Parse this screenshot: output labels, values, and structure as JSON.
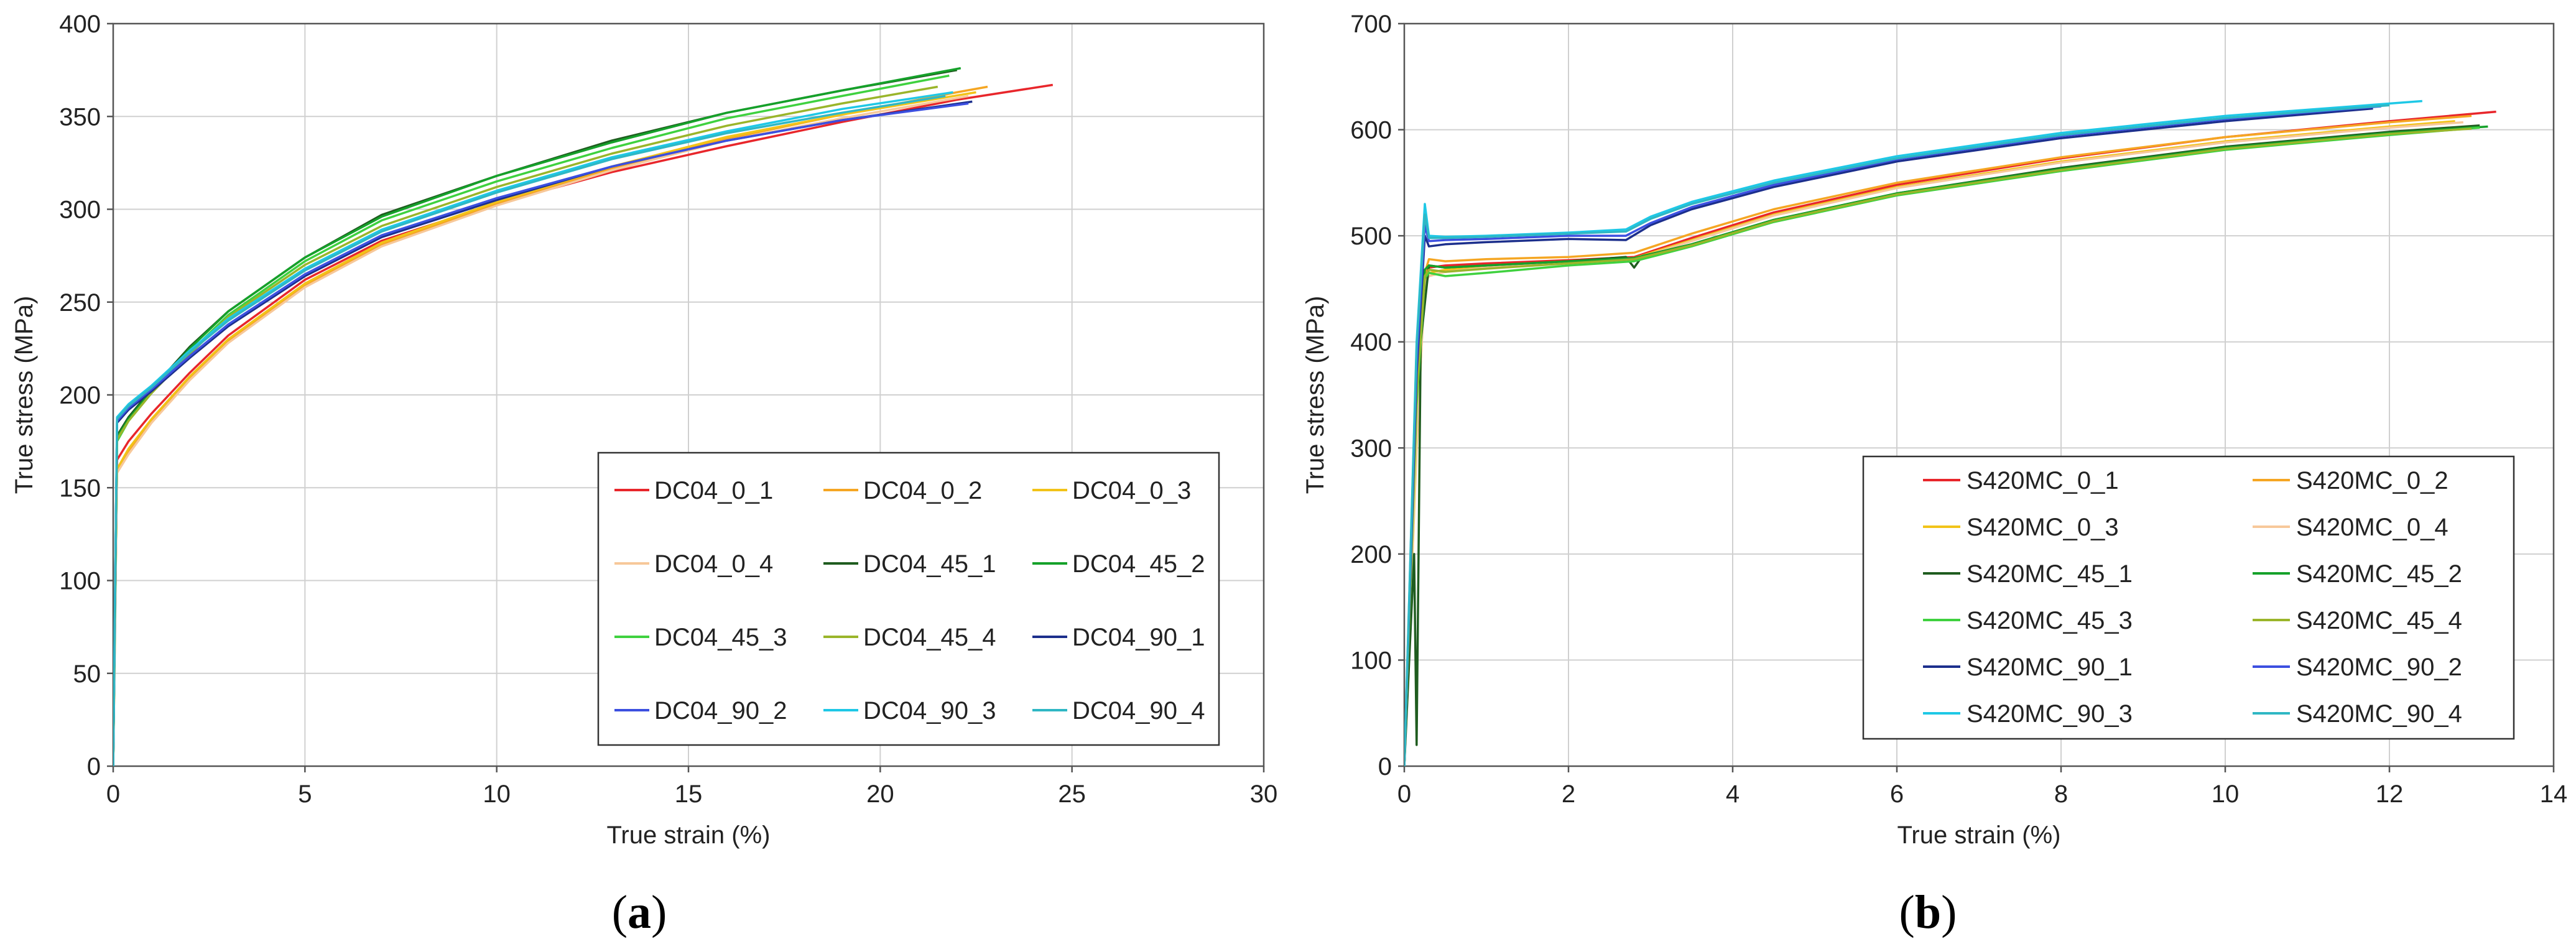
{
  "chart_data": [
    {
      "type": "line",
      "panel": "a",
      "caption": {
        "open": "(",
        "letter": "a",
        "close": ")"
      },
      "xlabel": "True strain (%)",
      "ylabel": "True stress (MPa)",
      "xlim": [
        0,
        30
      ],
      "ylim": [
        0,
        400
      ],
      "xticks": [
        0,
        5,
        10,
        15,
        20,
        25,
        30
      ],
      "yticks": [
        0,
        50,
        100,
        150,
        200,
        250,
        300,
        350,
        400
      ],
      "grid": true,
      "legend_position": "bottom-right",
      "legend_columns": 3,
      "series": [
        {
          "name": "DC04_0_1",
          "color": "#e8262b",
          "x": [
            0,
            0.1,
            0.4,
            1,
            2,
            3,
            5,
            7,
            10,
            13,
            16,
            19,
            22,
            24.5
          ],
          "y": [
            0,
            165,
            175,
            190,
            212,
            232,
            262,
            283,
            303,
            320,
            334,
            347,
            359,
            367
          ]
        },
        {
          "name": "DC04_0_2",
          "color": "#f5a623",
          "x": [
            0,
            0.1,
            0.4,
            1,
            2,
            3,
            5,
            7,
            10,
            13,
            16,
            19,
            22,
            22.8
          ],
          "y": [
            0,
            160,
            170,
            186,
            209,
            229,
            259,
            281,
            303,
            322,
            338,
            351,
            363,
            366
          ]
        },
        {
          "name": "DC04_0_3",
          "color": "#f2c318",
          "x": [
            0,
            0.1,
            0.4,
            1,
            2,
            3,
            5,
            7,
            10,
            13,
            16,
            19,
            22.5
          ],
          "y": [
            0,
            160,
            171,
            187,
            210,
            230,
            260,
            282,
            304,
            323,
            339,
            351,
            363
          ]
        },
        {
          "name": "DC04_0_4",
          "color": "#f7c89a",
          "x": [
            0,
            0.1,
            0.4,
            1,
            2,
            3,
            5,
            7,
            10,
            13,
            16,
            19,
            22.3
          ],
          "y": [
            0,
            158,
            168,
            185,
            208,
            228,
            258,
            280,
            302,
            321,
            337,
            349,
            361
          ]
        },
        {
          "name": "DC04_45_1",
          "color": "#1f5c1f",
          "x": [
            0,
            0.1,
            0.4,
            1,
            2,
            3,
            5,
            7,
            10,
            13,
            16,
            19,
            22
          ],
          "y": [
            0,
            178,
            188,
            203,
            226,
            245,
            274,
            297,
            318,
            337,
            352,
            364,
            375
          ]
        },
        {
          "name": "DC04_45_2",
          "color": "#15a12a",
          "x": [
            0,
            0.1,
            0.4,
            1,
            2,
            3,
            5,
            7,
            10,
            13,
            16,
            19,
            22.1
          ],
          "y": [
            0,
            177,
            187,
            202,
            225,
            245,
            274,
            296,
            318,
            336,
            352,
            364,
            376
          ]
        },
        {
          "name": "DC04_45_3",
          "color": "#3fd13f",
          "x": [
            0,
            0.1,
            0.4,
            1,
            2,
            3,
            5,
            7,
            10,
            13,
            16,
            19,
            21.8
          ],
          "y": [
            0,
            175,
            186,
            201,
            223,
            243,
            272,
            294,
            315,
            333,
            349,
            361,
            372
          ]
        },
        {
          "name": "DC04_45_4",
          "color": "#9ab52a",
          "x": [
            0,
            0.1,
            0.4,
            1,
            2,
            3,
            5,
            7,
            10,
            13,
            16,
            19,
            21.5
          ],
          "y": [
            0,
            176,
            186,
            201,
            222,
            242,
            270,
            291,
            312,
            330,
            345,
            357,
            366
          ]
        },
        {
          "name": "DC04_90_1",
          "color": "#1c2f8c",
          "x": [
            0,
            0.1,
            0.4,
            1,
            2,
            3,
            5,
            7,
            10,
            13,
            16,
            19,
            22.4
          ],
          "y": [
            0,
            185,
            192,
            202,
            220,
            237,
            264,
            285,
            305,
            323,
            337,
            348,
            358
          ]
        },
        {
          "name": "DC04_90_2",
          "color": "#3c4fe0",
          "x": [
            0,
            0.1,
            0.4,
            1,
            2,
            3,
            5,
            7,
            10,
            13,
            16,
            19,
            22.3
          ],
          "y": [
            0,
            186,
            193,
            203,
            221,
            238,
            265,
            286,
            306,
            323,
            337,
            348,
            357
          ]
        },
        {
          "name": "DC04_90_3",
          "color": "#1ec8e6",
          "x": [
            0,
            0.1,
            0.4,
            1,
            2,
            3,
            5,
            7,
            10,
            13,
            16,
            19,
            21.9
          ],
          "y": [
            0,
            188,
            195,
            205,
            224,
            241,
            268,
            289,
            310,
            328,
            342,
            354,
            363
          ]
        },
        {
          "name": "DC04_90_4",
          "color": "#2fb7c4",
          "x": [
            0,
            0.1,
            0.4,
            1,
            2,
            3,
            5,
            7,
            10,
            13,
            16,
            19,
            21.7
          ],
          "y": [
            0,
            187,
            194,
            204,
            223,
            240,
            267,
            288,
            309,
            327,
            341,
            352,
            361
          ]
        }
      ]
    },
    {
      "type": "line",
      "panel": "b",
      "caption": {
        "open": "(",
        "letter": "b",
        "close": ")"
      },
      "xlabel": "True strain (%)",
      "ylabel": "True stress (MPa)",
      "xlim": [
        0,
        14
      ],
      "ylim": [
        0,
        700
      ],
      "xticks": [
        0,
        2,
        4,
        6,
        8,
        10,
        12,
        14
      ],
      "yticks": [
        0,
        100,
        200,
        300,
        400,
        500,
        600,
        700
      ],
      "grid": true,
      "legend_position": "right",
      "legend_columns": 2,
      "series": [
        {
          "name": "S420MC_0_1",
          "color": "#e8262b",
          "x": [
            0,
            0.15,
            0.25,
            0.3,
            0.5,
            1,
            2,
            2.8,
            3.5,
            4.5,
            6,
            8,
            10,
            12,
            13.3
          ],
          "y": [
            0,
            320,
            460,
            470,
            472,
            474,
            477,
            480,
            498,
            522,
            548,
            573,
            593,
            608,
            617
          ]
        },
        {
          "name": "S420MC_0_2",
          "color": "#f5a623",
          "x": [
            0,
            0.15,
            0.25,
            0.3,
            0.5,
            1,
            2,
            2.8,
            3.5,
            4.5,
            6,
            8,
            10,
            12,
            13.0
          ],
          "y": [
            0,
            310,
            465,
            478,
            476,
            478,
            480,
            484,
            502,
            525,
            550,
            574,
            593,
            607,
            613
          ]
        },
        {
          "name": "S420MC_0_3",
          "color": "#f2c318",
          "x": [
            0,
            0.15,
            0.25,
            0.3,
            0.5,
            1,
            2,
            2.8,
            3.5,
            4.5,
            6,
            8,
            10,
            12,
            12.8
          ],
          "y": [
            0,
            300,
            458,
            465,
            468,
            471,
            475,
            479,
            496,
            520,
            546,
            570,
            589,
            603,
            608
          ]
        },
        {
          "name": "S420MC_0_4",
          "color": "#f7c89a",
          "x": [
            0,
            0.15,
            0.25,
            0.3,
            0.5,
            1,
            2,
            2.8,
            3.5,
            4.5,
            6,
            8,
            10,
            12,
            12.9
          ],
          "y": [
            0,
            305,
            455,
            462,
            466,
            470,
            474,
            478,
            495,
            519,
            545,
            569,
            588,
            602,
            607
          ]
        },
        {
          "name": "S420MC_45_1",
          "color": "#1f5c1f",
          "x": [
            0,
            0.12,
            0.15,
            0.2,
            0.3,
            0.5,
            1,
            2,
            2.7,
            2.8,
            2.9,
            3.5,
            4.5,
            6,
            8,
            10,
            12,
            13.1
          ],
          "y": [
            0,
            200,
            20,
            400,
            472,
            470,
            472,
            476,
            480,
            470,
            481,
            492,
            515,
            540,
            564,
            584,
            598,
            604
          ]
        },
        {
          "name": "S420MC_45_2",
          "color": "#15a12a",
          "x": [
            0,
            0.15,
            0.25,
            0.3,
            0.5,
            1,
            2,
            2.8,
            3.5,
            4.5,
            6,
            8,
            10,
            12,
            13.2
          ],
          "y": [
            0,
            360,
            468,
            472,
            470,
            472,
            476,
            479,
            492,
            515,
            540,
            563,
            583,
            597,
            603
          ]
        },
        {
          "name": "S420MC_45_3",
          "color": "#3fd13f",
          "x": [
            0,
            0.15,
            0.25,
            0.3,
            0.5,
            1,
            2,
            2.8,
            3.5,
            4.5,
            6,
            8,
            10,
            12,
            13.1
          ],
          "y": [
            0,
            340,
            460,
            465,
            462,
            465,
            472,
            476,
            490,
            513,
            538,
            561,
            581,
            595,
            602
          ]
        },
        {
          "name": "S420MC_45_4",
          "color": "#9ab52a",
          "x": [
            0,
            0.15,
            0.25,
            0.3,
            0.5,
            1,
            2,
            2.8,
            3.5,
            4.5,
            6,
            8,
            10,
            12,
            13.0
          ],
          "y": [
            0,
            350,
            462,
            468,
            466,
            469,
            474,
            478,
            491,
            514,
            539,
            562,
            582,
            596,
            601
          ]
        },
        {
          "name": "S420MC_90_1",
          "color": "#1c2f8c",
          "x": [
            0,
            0.15,
            0.25,
            0.3,
            0.5,
            1,
            2,
            2.7,
            3.0,
            3.5,
            4.5,
            6,
            8,
            10,
            11.8
          ],
          "y": [
            0,
            370,
            500,
            490,
            492,
            494,
            497,
            496,
            510,
            525,
            546,
            570,
            592,
            608,
            620
          ]
        },
        {
          "name": "S420MC_90_2",
          "color": "#3c4fe0",
          "x": [
            0,
            0.15,
            0.25,
            0.3,
            0.5,
            1,
            2,
            2.7,
            3.0,
            3.5,
            4.5,
            6,
            8,
            10,
            11.9
          ],
          "y": [
            0,
            380,
            510,
            495,
            496,
            497,
            500,
            500,
            512,
            527,
            548,
            572,
            594,
            610,
            622
          ]
        },
        {
          "name": "S420MC_90_3",
          "color": "#1ec8e6",
          "x": [
            0,
            0.15,
            0.25,
            0.3,
            0.5,
            1,
            2,
            2.7,
            3.0,
            3.5,
            4.5,
            6,
            8,
            10,
            12.4
          ],
          "y": [
            0,
            400,
            530,
            500,
            499,
            500,
            503,
            506,
            518,
            532,
            552,
            575,
            597,
            613,
            627
          ]
        },
        {
          "name": "S420MC_90_4",
          "color": "#2fb7c4",
          "x": [
            0,
            0.15,
            0.25,
            0.3,
            0.5,
            1,
            2,
            2.7,
            3.0,
            3.5,
            4.5,
            6,
            8,
            10,
            12.0
          ],
          "y": [
            0,
            395,
            520,
            498,
            498,
            499,
            502,
            504,
            516,
            530,
            550,
            573,
            595,
            611,
            623
          ]
        }
      ]
    }
  ]
}
